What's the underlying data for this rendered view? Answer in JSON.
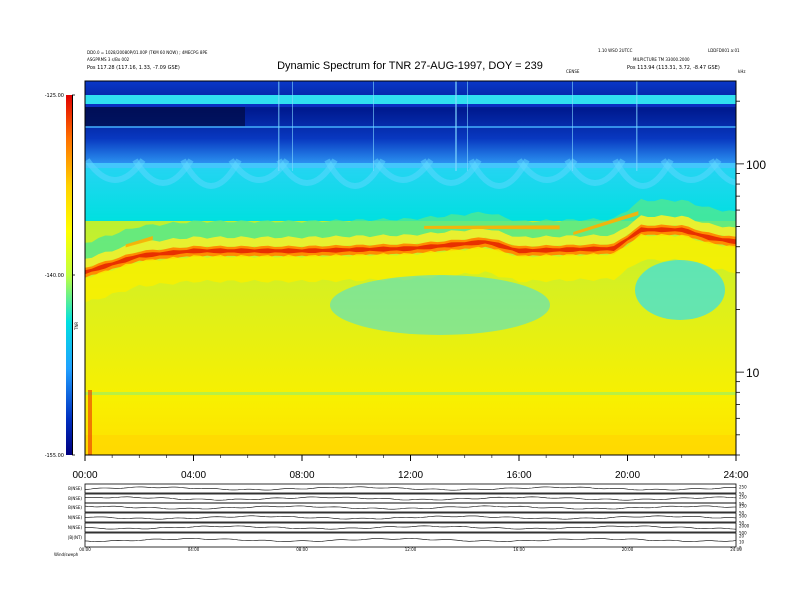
{
  "header": {
    "left_line1": "DD0.0 = 1028/20080P/01.00P (TKM 60 NOW) ; 4MECPG 8PE",
    "left_line2": "ASGPRMS 3 s/Bo 002",
    "left_line3": "Pos   117.28 (117.16, 1.33, -7.09 GSE)",
    "right_line1": "1.10 WSO 2UTCC",
    "right_line1b": "LDDFD001 a:01",
    "right_line2": "MILPICTURE TM 33000.2000",
    "right_line3": "Pos   113.94 (113.31, 3.72, -8.47 GSE)",
    "khz_label": "kHz",
    "center_small": "CENSE"
  },
  "chart_data": [
    {
      "type": "heatmap",
      "title": "Dynamic Spectrum for TNR 27-AUG-1997, DOY = 239",
      "x_ticks": [
        "00:00",
        "04:00",
        "08:00",
        "12:00",
        "16:00",
        "20:00",
        "24:00"
      ],
      "x_range_hours": [
        0,
        24
      ],
      "y_scale": "log",
      "y_ticks": [
        "100",
        "10"
      ],
      "y_tick_values_khz": [
        100,
        10
      ],
      "y_range_khz": [
        4,
        250
      ],
      "colorbar": {
        "label": "TNR",
        "ticks": [
          "-125.00",
          "-140.00",
          "-155.00"
        ],
        "tick_values": [
          -125,
          -140,
          -155
        ],
        "colors": [
          "#e00000",
          "#ff7000",
          "#ffd000",
          "#ffff00",
          "#c0ff40",
          "#00e0e0",
          "#20a0ff",
          "#0030c0",
          "#000080"
        ]
      },
      "features": {
        "emission_band_khz_approx": [
          {
            "hour": 0,
            "khz": 30
          },
          {
            "hour": 2,
            "khz": 36
          },
          {
            "hour": 4,
            "khz": 38
          },
          {
            "hour": 8,
            "khz": 38
          },
          {
            "hour": 12,
            "khz": 39
          },
          {
            "hour": 14.8,
            "khz": 42
          },
          {
            "hour": 16,
            "khz": 38
          },
          {
            "hour": 19.5,
            "khz": 39
          },
          {
            "hour": 20.5,
            "khz": 48
          },
          {
            "hour": 22,
            "khz": 48
          },
          {
            "hour": 23,
            "khz": 44
          },
          {
            "hour": 24,
            "khz": 42
          }
        ]
      }
    },
    {
      "type": "line",
      "title": "",
      "panels": [
        {
          "label": "B(NSE)",
          "right_ticks": [
            "250",
            "50"
          ]
        },
        {
          "label": "B(NSE)",
          "right_ticks": [
            "250",
            "50"
          ]
        },
        {
          "label": "B(NSE)",
          "right_ticks": [
            "250",
            "50"
          ]
        },
        {
          "label": "N(NSE)",
          "right_ticks": [
            "500",
            "50"
          ]
        },
        {
          "label": "N(NSE)",
          "right_ticks": [
            "2000",
            "500"
          ]
        },
        {
          "label": "|B|(NT)",
          "right_ticks": [
            "20",
            "10",
            "0"
          ]
        }
      ],
      "x_ticks": [
        "00:00",
        "04:00",
        "08:00",
        "12:00",
        "16:00",
        "20:00",
        "24:00"
      ],
      "footer_label": "Wind/sweph"
    }
  ]
}
